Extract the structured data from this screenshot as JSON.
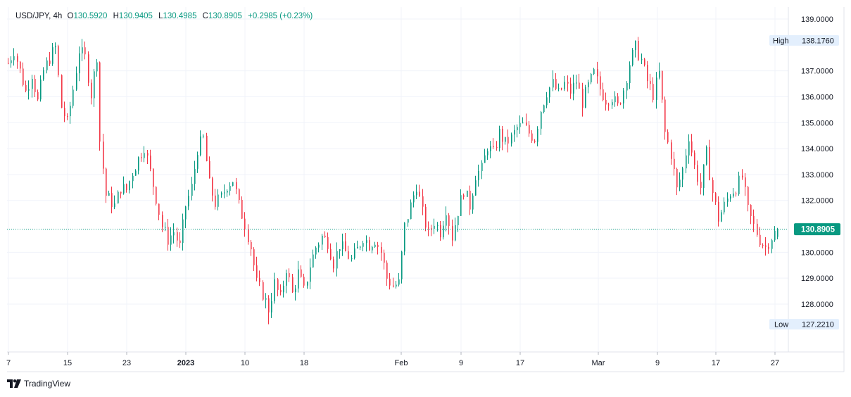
{
  "header": {
    "symbol": "USD/JPY",
    "interval": "4h",
    "open_key": "O",
    "open": "130.5920",
    "high_key": "H",
    "high": "130.9405",
    "low_key": "L",
    "low": "130.4985",
    "close_key": "C",
    "close": "130.8905",
    "change": "+0.2985 (+0.23%)"
  },
  "branding": {
    "name": "TradingView"
  },
  "colors": {
    "up": "#089981",
    "down": "#f23645",
    "price_tag": "#089981",
    "tag_bg": "#e3effd",
    "grid": "#f0f3fa"
  },
  "chart_data": {
    "type": "candlestick",
    "title": "USD/JPY, 4h",
    "ylim": [
      126.6,
      139.6
    ],
    "y_ticks": [
      {
        "value": 139,
        "label": "139.0000"
      },
      {
        "value": 137,
        "label": "137.0000"
      },
      {
        "value": 136,
        "label": "136.0000"
      },
      {
        "value": 135,
        "label": "135.0000"
      },
      {
        "value": 134,
        "label": "134.0000"
      },
      {
        "value": 133,
        "label": "133.0000"
      },
      {
        "value": 132,
        "label": "132.0000"
      },
      {
        "value": 130,
        "label": "130.0000"
      },
      {
        "value": 129,
        "label": "129.0000"
      },
      {
        "value": 128,
        "label": "128.0000"
      }
    ],
    "x_ticks": [
      "7",
      "15",
      "23",
      "2023",
      "10",
      "18",
      "Feb",
      "9",
      "17",
      "Mar",
      "9",
      "17",
      "27"
    ],
    "high_marker": {
      "label": "High",
      "value": 138.176,
      "text": "138.1760"
    },
    "low_marker": {
      "label": "Low",
      "value": 127.221,
      "text": "127.2210"
    },
    "last_price": {
      "value": 130.8905,
      "text": "130.8905"
    },
    "path": [
      [
        0,
        137.3
      ],
      [
        2,
        137.8
      ],
      [
        4,
        137.0
      ],
      [
        6,
        136.2
      ],
      [
        8,
        136.9
      ],
      [
        10,
        135.8
      ],
      [
        12,
        137.0
      ],
      [
        14,
        137.5
      ],
      [
        16,
        137.9
      ],
      [
        18,
        135.6
      ],
      [
        20,
        135.0
      ],
      [
        22,
        136.3
      ],
      [
        24,
        137.8
      ],
      [
        26,
        137.5
      ],
      [
        28,
        136.1
      ],
      [
        30,
        137.6
      ],
      [
        31,
        134.3
      ],
      [
        33,
        132.2
      ],
      [
        36,
        131.8
      ],
      [
        38,
        132.5
      ],
      [
        40,
        132.4
      ],
      [
        42,
        133.1
      ],
      [
        44,
        133.6
      ],
      [
        46,
        134.1
      ],
      [
        48,
        133.1
      ],
      [
        50,
        132.1
      ],
      [
        52,
        131.0
      ],
      [
        54,
        130.5
      ],
      [
        56,
        130.8
      ],
      [
        58,
        130.2
      ],
      [
        60,
        131.8
      ],
      [
        62,
        132.5
      ],
      [
        64,
        134.0
      ],
      [
        66,
        134.4
      ],
      [
        68,
        132.6
      ],
      [
        70,
        131.9
      ],
      [
        72,
        132.1
      ],
      [
        74,
        132.6
      ],
      [
        76,
        132.8
      ],
      [
        78,
        131.8
      ],
      [
        80,
        131.1
      ],
      [
        82,
        130.2
      ],
      [
        84,
        128.8
      ],
      [
        86,
        128.4
      ],
      [
        88,
        127.8
      ],
      [
        90,
        128.8
      ],
      [
        92,
        128.2
      ],
      [
        94,
        129.4
      ],
      [
        96,
        128.4
      ],
      [
        98,
        129.2
      ],
      [
        100,
        128.5
      ],
      [
        102,
        129.5
      ],
      [
        104,
        130.2
      ],
      [
        106,
        130.6
      ],
      [
        108,
        130.4
      ],
      [
        110,
        129.6
      ],
      [
        112,
        130.3
      ],
      [
        114,
        130.0
      ],
      [
        116,
        129.7
      ],
      [
        118,
        130.1
      ],
      [
        120,
        130.6
      ],
      [
        122,
        130.3
      ],
      [
        124,
        130.5
      ],
      [
        126,
        130.0
      ],
      [
        128,
        129.0
      ],
      [
        130,
        128.7
      ],
      [
        132,
        128.8
      ],
      [
        134,
        131.0
      ],
      [
        136,
        131.8
      ],
      [
        138,
        132.6
      ],
      [
        140,
        131.5
      ],
      [
        142,
        130.7
      ],
      [
        144,
        131.2
      ],
      [
        146,
        130.8
      ],
      [
        148,
        131.7
      ],
      [
        150,
        130.6
      ],
      [
        152,
        131.6
      ],
      [
        154,
        132.4
      ],
      [
        156,
        131.8
      ],
      [
        158,
        133.0
      ],
      [
        160,
        133.2
      ],
      [
        162,
        134.1
      ],
      [
        164,
        133.8
      ],
      [
        166,
        134.6
      ],
      [
        168,
        134.2
      ],
      [
        170,
        134.4
      ],
      [
        172,
        134.8
      ],
      [
        174,
        134.9
      ],
      [
        176,
        134.6
      ],
      [
        178,
        134.4
      ],
      [
        180,
        135.5
      ],
      [
        182,
        136.2
      ],
      [
        184,
        136.5
      ],
      [
        186,
        136.1
      ],
      [
        188,
        136.5
      ],
      [
        190,
        136.2
      ],
      [
        192,
        136.6
      ],
      [
        194,
        135.8
      ],
      [
        196,
        136.4
      ],
      [
        198,
        136.9
      ],
      [
        200,
        136.3
      ],
      [
        202,
        135.9
      ],
      [
        204,
        136.0
      ],
      [
        206,
        135.6
      ],
      [
        208,
        136.3
      ],
      [
        210,
        137.3
      ],
      [
        212,
        137.9
      ],
      [
        214,
        137.4
      ],
      [
        216,
        136.6
      ],
      [
        218,
        136.1
      ],
      [
        220,
        136.9
      ],
      [
        222,
        134.6
      ],
      [
        224,
        133.8
      ],
      [
        226,
        132.4
      ],
      [
        228,
        133.2
      ],
      [
        230,
        134.5
      ],
      [
        232,
        133.3
      ],
      [
        234,
        132.5
      ],
      [
        236,
        133.8
      ],
      [
        238,
        132.3
      ],
      [
        240,
        131.3
      ],
      [
        242,
        131.8
      ],
      [
        244,
        132.3
      ],
      [
        246,
        132.5
      ],
      [
        248,
        132.9
      ],
      [
        250,
        131.6
      ],
      [
        252,
        131.0
      ],
      [
        254,
        130.5
      ],
      [
        256,
        130.2
      ],
      [
        258,
        130.6
      ],
      [
        260,
        130.8905
      ]
    ]
  }
}
